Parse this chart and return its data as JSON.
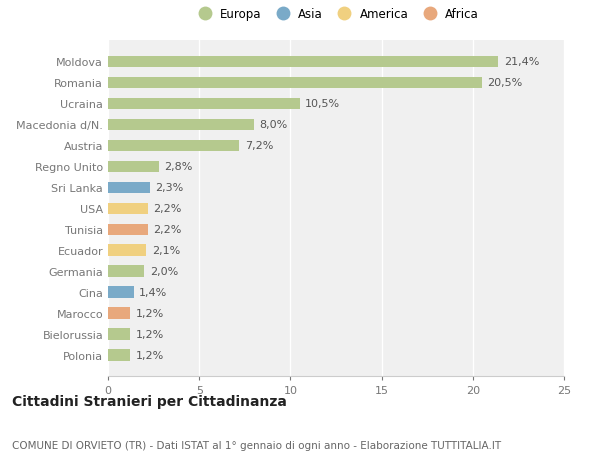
{
  "categories": [
    "Moldova",
    "Romania",
    "Ucraina",
    "Macedonia d/N.",
    "Austria",
    "Regno Unito",
    "Sri Lanka",
    "USA",
    "Tunisia",
    "Ecuador",
    "Germania",
    "Cina",
    "Marocco",
    "Bielorussia",
    "Polonia"
  ],
  "values": [
    21.4,
    20.5,
    10.5,
    8.0,
    7.2,
    2.8,
    2.3,
    2.2,
    2.2,
    2.1,
    2.0,
    1.4,
    1.2,
    1.2,
    1.2
  ],
  "labels": [
    "21,4%",
    "20,5%",
    "10,5%",
    "8,0%",
    "7,2%",
    "2,8%",
    "2,3%",
    "2,2%",
    "2,2%",
    "2,1%",
    "2,0%",
    "1,4%",
    "1,2%",
    "1,2%",
    "1,2%"
  ],
  "continents": [
    "Europa",
    "Europa",
    "Europa",
    "Europa",
    "Europa",
    "Europa",
    "Asia",
    "America",
    "Africa",
    "America",
    "Europa",
    "Asia",
    "Africa",
    "Europa",
    "Europa"
  ],
  "colors": {
    "Europa": "#b5c98e",
    "Asia": "#7aaac8",
    "America": "#f0d080",
    "Africa": "#e8a87c"
  },
  "xlim": [
    0,
    25
  ],
  "xticks": [
    0,
    5,
    10,
    15,
    20,
    25
  ],
  "title": "Cittadini Stranieri per Cittadinanza",
  "subtitle": "COMUNE DI ORVIETO (TR) - Dati ISTAT al 1° gennaio di ogni anno - Elaborazione TUTTITALIA.IT",
  "background_color": "#ffffff",
  "plot_bg_color": "#f0f0f0",
  "grid_color": "#ffffff",
  "bar_height": 0.55,
  "title_fontsize": 10,
  "subtitle_fontsize": 7.5,
  "tick_fontsize": 8,
  "label_fontsize": 8,
  "legend_items": [
    "Europa",
    "Asia",
    "America",
    "Africa"
  ],
  "legend_colors": [
    "#b5c98e",
    "#7aaac8",
    "#f0d080",
    "#e8a87c"
  ]
}
